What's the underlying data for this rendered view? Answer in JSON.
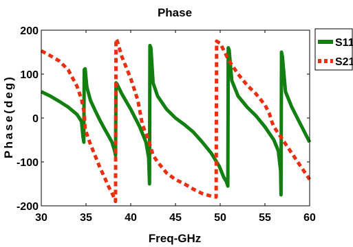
{
  "chart_data": {
    "type": "line",
    "title": "Phase",
    "xlabel": "Freq-GHz",
    "ylabel": "Phase(deg)",
    "xlim": [
      30,
      60
    ],
    "ylim": [
      -200,
      200
    ],
    "xticks": [
      "30",
      "35",
      "40",
      "45",
      "50",
      "55",
      "60"
    ],
    "yticks": [
      "200",
      "100",
      "0",
      "-100",
      "-200"
    ],
    "grid": false,
    "legend_position": "outside-right",
    "series": [
      {
        "name": "S11",
        "color": "#118011",
        "style": "solid",
        "points": [
          [
            30,
            60
          ],
          [
            31,
            50
          ],
          [
            32,
            38
          ],
          [
            33,
            25
          ],
          [
            34,
            8
          ],
          [
            34.5,
            -8
          ],
          [
            34.65,
            -40
          ],
          [
            34.75,
            -55
          ],
          [
            34.8,
            110
          ],
          [
            34.9,
            112
          ],
          [
            35.1,
            70
          ],
          [
            35.5,
            40
          ],
          [
            36,
            18
          ],
          [
            36.5,
            -3
          ],
          [
            37,
            -22
          ],
          [
            37.5,
            -40
          ],
          [
            37.9,
            -55
          ],
          [
            38.2,
            -75
          ],
          [
            38.3,
            -85
          ],
          [
            38.35,
            80
          ],
          [
            38.45,
            78
          ],
          [
            39,
            55
          ],
          [
            40,
            20
          ],
          [
            41,
            -20
          ],
          [
            41.7,
            -55
          ],
          [
            42,
            -90
          ],
          [
            42.1,
            -150
          ],
          [
            42.15,
            165
          ],
          [
            42.25,
            160
          ],
          [
            42.5,
            80
          ],
          [
            43,
            50
          ],
          [
            44,
            20
          ],
          [
            45,
            0
          ],
          [
            46,
            -15
          ],
          [
            47,
            -32
          ],
          [
            48,
            -55
          ],
          [
            49,
            -80
          ],
          [
            49.9,
            -110
          ],
          [
            50.4,
            -135
          ],
          [
            50.7,
            -145
          ],
          [
            50.85,
            -155
          ],
          [
            50.9,
            160
          ],
          [
            51.0,
            155
          ],
          [
            51.3,
            85
          ],
          [
            52,
            50
          ],
          [
            53,
            25
          ],
          [
            54,
            5
          ],
          [
            55,
            -20
          ],
          [
            56,
            -50
          ],
          [
            56.5,
            -75
          ],
          [
            56.75,
            -120
          ],
          [
            56.8,
            -175
          ],
          [
            56.85,
            150
          ],
          [
            56.95,
            140
          ],
          [
            57.3,
            60
          ],
          [
            58,
            25
          ],
          [
            59,
            -15
          ],
          [
            60,
            -55
          ]
        ]
      },
      {
        "name": "S21",
        "color": "#e83010",
        "style": "dashed",
        "points": [
          [
            30,
            153
          ],
          [
            31,
            142
          ],
          [
            32,
            130
          ],
          [
            33,
            110
          ],
          [
            34,
            72
          ],
          [
            34.5,
            42
          ],
          [
            34.8,
            12
          ],
          [
            34.9,
            -25
          ],
          [
            35.5,
            -60
          ],
          [
            36,
            -85
          ],
          [
            36.5,
            -110
          ],
          [
            37,
            -132
          ],
          [
            37.5,
            -155
          ],
          [
            38,
            -175
          ],
          [
            38.3,
            -190
          ],
          [
            38.35,
            180
          ],
          [
            38.5,
            175
          ],
          [
            39,
            140
          ],
          [
            40,
            90
          ],
          [
            40.8,
            40
          ],
          [
            41.3,
            -15
          ],
          [
            41.9,
            -45
          ],
          [
            42.5,
            -85
          ],
          [
            43,
            -100
          ],
          [
            44,
            -125
          ],
          [
            45,
            -140
          ],
          [
            46,
            -150
          ],
          [
            47,
            -162
          ],
          [
            48,
            -172
          ],
          [
            49,
            -178
          ],
          [
            49.55,
            -180
          ],
          [
            49.6,
            175
          ],
          [
            50,
            170
          ],
          [
            51,
            130
          ],
          [
            52,
            100
          ],
          [
            53,
            75
          ],
          [
            54,
            55
          ],
          [
            55,
            30
          ],
          [
            55.5,
            10
          ],
          [
            55.8,
            -10
          ],
          [
            56,
            -20
          ],
          [
            57,
            -50
          ],
          [
            58,
            -80
          ],
          [
            59,
            -110
          ],
          [
            60,
            -140
          ]
        ]
      }
    ]
  }
}
